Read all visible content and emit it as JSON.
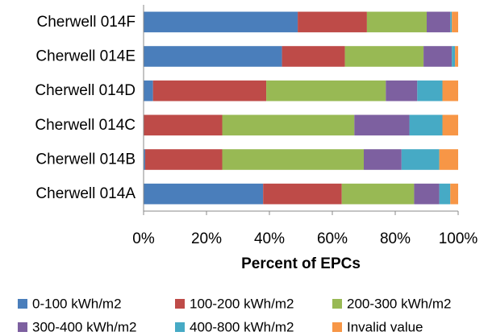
{
  "chart_data": {
    "type": "bar",
    "orientation": "horizontal",
    "stacked": "percent",
    "xlabel": "Percent of EPCs",
    "ylabel": "",
    "xlim": [
      0,
      100
    ],
    "x_ticks": [
      "0%",
      "20%",
      "40%",
      "60%",
      "80%",
      "100%"
    ],
    "grid": false,
    "legend_position": "bottom",
    "categories": [
      "Cherwell 014F",
      "Cherwell 014E",
      "Cherwell 014D",
      "Cherwell 014C",
      "Cherwell 014B",
      "Cherwell 014A"
    ],
    "series": [
      {
        "name": "0-100 kWh/m2",
        "color": "#4a7ebb",
        "values": [
          49,
          44,
          3,
          0,
          0.5,
          38
        ]
      },
      {
        "name": "100-200 kWh/m2",
        "color": "#be4b48",
        "values": [
          22,
          20,
          36,
          25,
          24.5,
          25
        ]
      },
      {
        "name": "200-300 kWh/m2",
        "color": "#98b954",
        "values": [
          19,
          25,
          38,
          42,
          45,
          23
        ]
      },
      {
        "name": "300-400 kWh/m2",
        "color": "#7d60a0",
        "values": [
          7.5,
          9,
          10,
          17.5,
          12,
          8
        ]
      },
      {
        "name": "400-800 kWh/m2",
        "color": "#46aac5",
        "values": [
          0.5,
          1,
          8,
          10.5,
          12,
          3.5
        ]
      },
      {
        "name": "Invalid value",
        "color": "#f79646",
        "values": [
          2,
          1,
          5,
          5,
          6,
          2.5
        ]
      }
    ]
  }
}
